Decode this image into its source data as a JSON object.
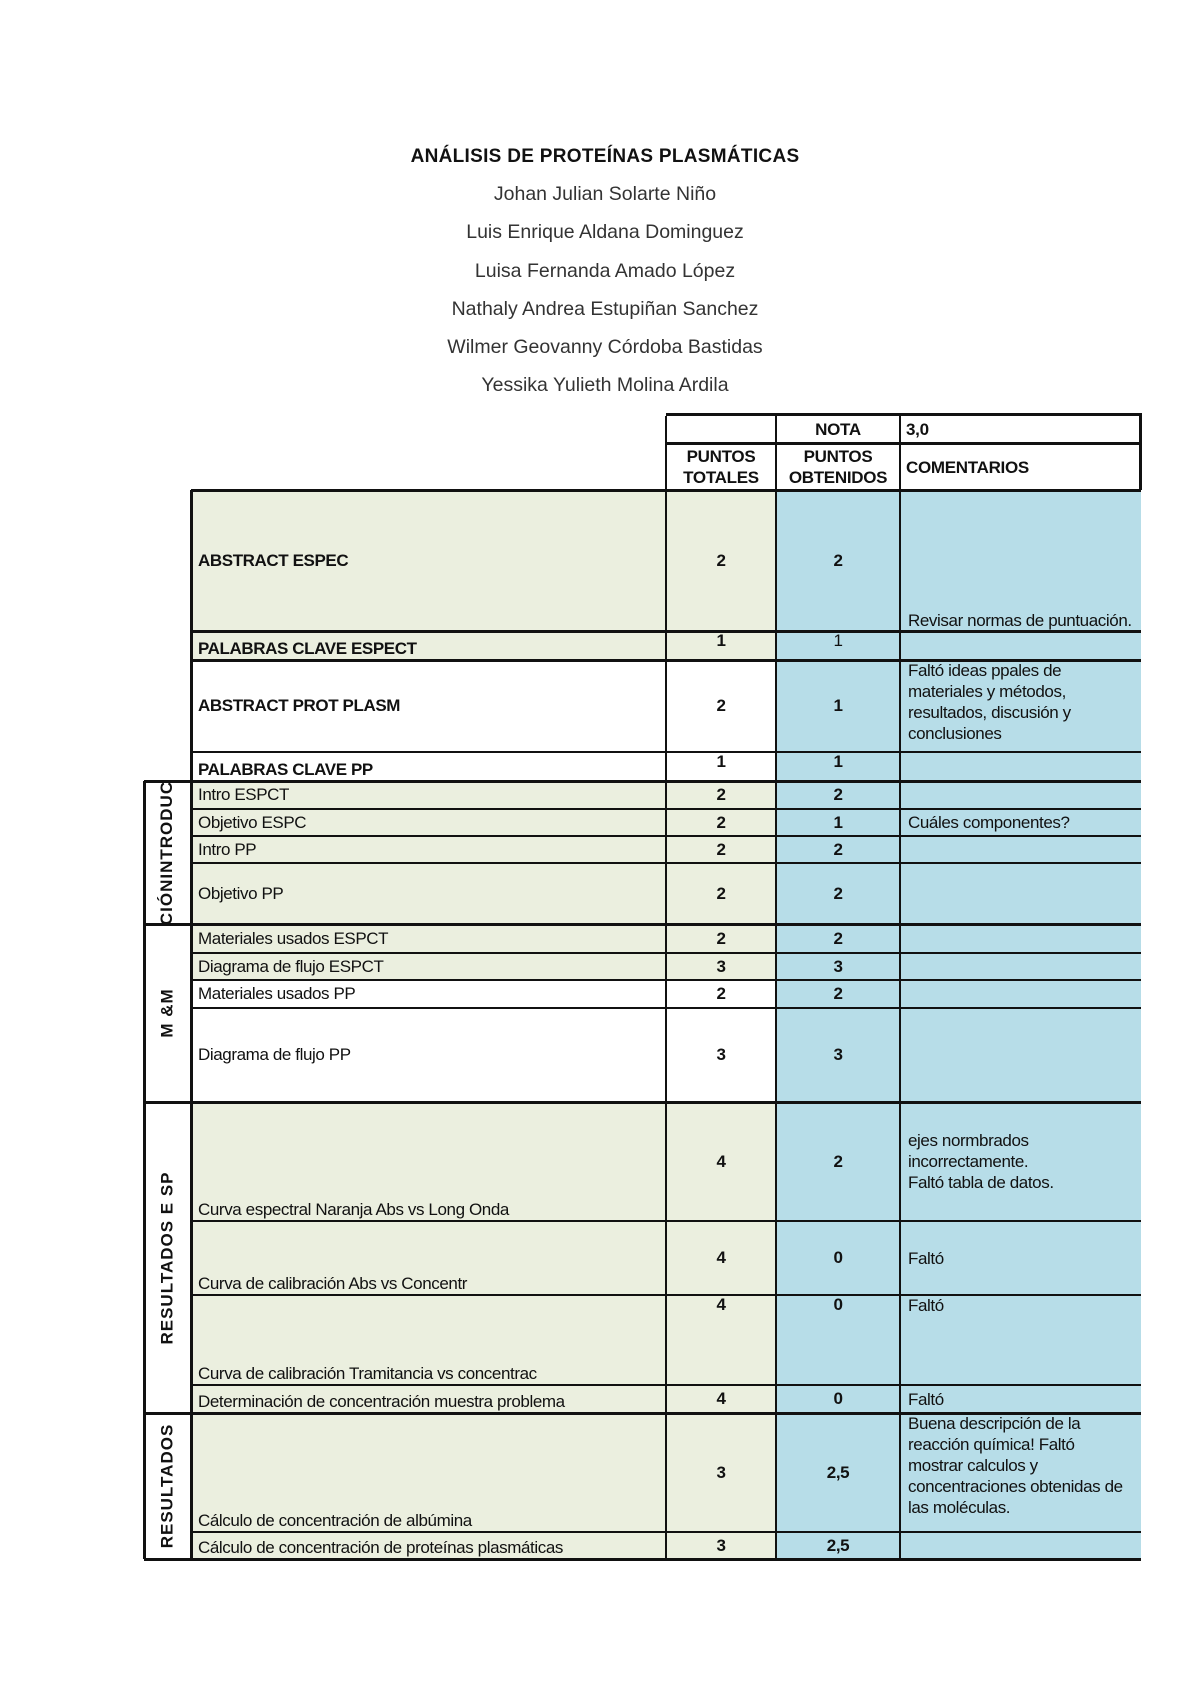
{
  "document": {
    "title": "ANÁLISIS DE PROTEÍNAS PLASMÁTICAS",
    "authors": [
      "Johan Julian Solarte Niño",
      "Luis Enrique Aldana Dominguez",
      "Luisa Fernanda Amado López",
      "Nathaly Andrea Estupiñan Sanchez",
      "Wilmer Geovanny Córdoba Bastidas",
      "Yessika Yulieth Molina Ardila"
    ]
  },
  "table": {
    "nota_label": "NOTA",
    "nota_value": "3,0",
    "headers": {
      "puntos_totales": "PUNTOS\nTOTALES",
      "puntos_obtenidos": "PUNTOS\nOBTENIDOS",
      "comentarios": "COMENTARIOS"
    },
    "colors": {
      "green": "#ebefdf",
      "blue": "#b7dde8"
    },
    "sections": [
      {
        "label": "CIÓNINTRODUC"
      },
      {
        "label": "M &M"
      },
      {
        "label": "RESULTADOS E SP"
      },
      {
        "label": "RESULTADOS"
      }
    ],
    "rows": [
      {
        "item": "ABSTRACT ESPEC",
        "totales": "2",
        "obtenidos": "2",
        "comentario": "Revisar normas de puntuación."
      },
      {
        "item": "PALABRAS CLAVE ESPECT",
        "totales": "1",
        "obtenidos": "1",
        "comentario": ""
      },
      {
        "item": "ABSTRACT PROT PLASM",
        "totales": "2",
        "obtenidos": "1",
        "comentario": "Faltó ideas ppales de materiales y métodos, resultados, discusión y conclusiones"
      },
      {
        "item": "PALABRAS CLAVE PP",
        "totales": "1",
        "obtenidos": "1",
        "comentario": ""
      },
      {
        "item": "Intro ESPCT",
        "totales": "2",
        "obtenidos": "2",
        "comentario": ""
      },
      {
        "item": "Objetivo ESPC",
        "totales": "2",
        "obtenidos": "1",
        "comentario": "Cuáles componentes?"
      },
      {
        "item": "Intro PP",
        "totales": "2",
        "obtenidos": "2",
        "comentario": ""
      },
      {
        "item": "Objetivo PP",
        "totales": "2",
        "obtenidos": "2",
        "comentario": ""
      },
      {
        "item": "Materiales usados ESPCT",
        "totales": "2",
        "obtenidos": "2",
        "comentario": ""
      },
      {
        "item": "Diagrama de flujo ESPCT",
        "totales": "3",
        "obtenidos": "3",
        "comentario": ""
      },
      {
        "item": "Materiales usados PP",
        "totales": "2",
        "obtenidos": "2",
        "comentario": ""
      },
      {
        "item": "Diagrama de flujo PP",
        "totales": "3",
        "obtenidos": "3",
        "comentario": ""
      },
      {
        "item": "Curva espectral Naranja Abs vs Long Onda",
        "totales": "4",
        "obtenidos": "2",
        "comentario": "ejes normbrados incorrectamente.\nFaltó tabla de datos."
      },
      {
        "item": "Curva de calibración Abs vs Concentr",
        "totales": "4",
        "obtenidos": "0",
        "comentario": "Faltó"
      },
      {
        "item": "Curva de calibración Tramitancia vs concentrac",
        "totales": "4",
        "obtenidos": "0",
        "comentario": "Faltó"
      },
      {
        "item": "Determinación de concentración muestra problema",
        "totales": "4",
        "obtenidos": "0",
        "comentario": "Faltó"
      },
      {
        "item": "Cálculo de concentración de albúmina",
        "totales": "3",
        "obtenidos": "2,5",
        "comentario": "Buena descripción de la reacción química! Faltó mostrar calculos y concentraciones obtenidas de las moléculas."
      },
      {
        "item": "Cálculo de concentración de proteínas plasmáticas",
        "totales": "3",
        "obtenidos": "2,5",
        "comentario": ""
      }
    ]
  }
}
